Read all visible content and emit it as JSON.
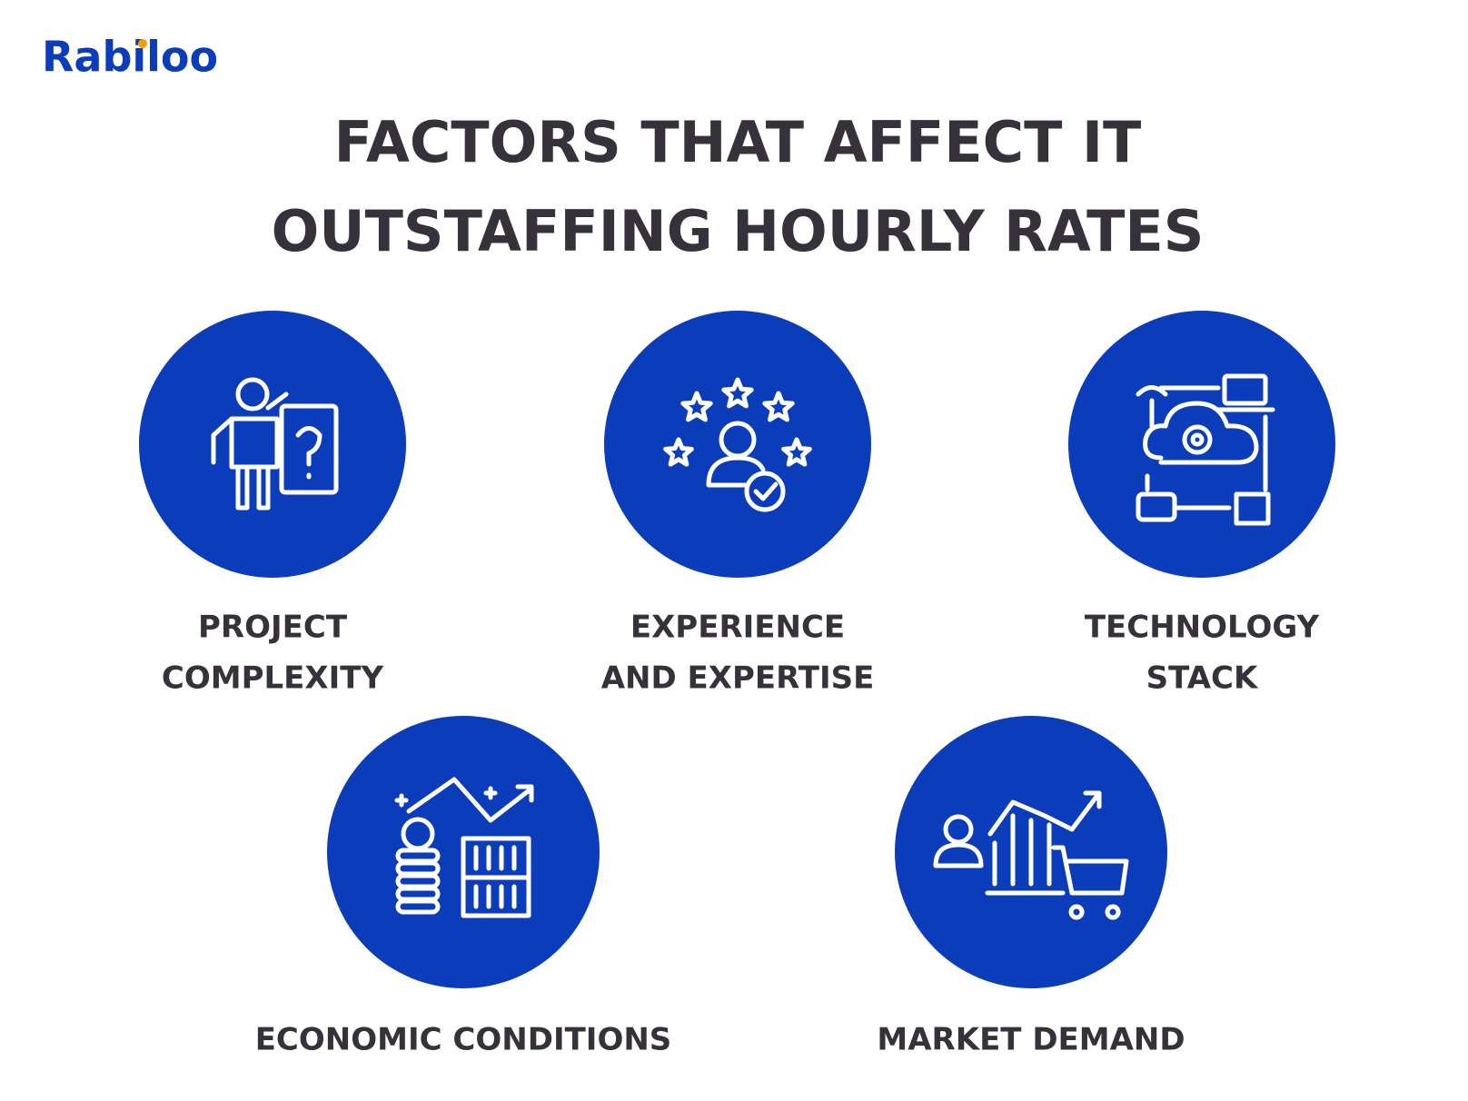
{
  "logo": "Rabiloo",
  "title_lines": [
    "FACTORS THAT AFFECT IT",
    "OUTSTAFFING HOURLY RATES"
  ],
  "factors": [
    {
      "label_lines": [
        "PROJECT",
        "COMPLEXITY"
      ]
    },
    {
      "label_lines": [
        "EXPERIENCE",
        "AND EXPERTISE"
      ]
    },
    {
      "label_lines": [
        "TECHNOLOGY",
        "STACK"
      ]
    },
    {
      "label_lines": [
        "ECONOMIC CONDITIONS"
      ]
    },
    {
      "label_lines": [
        "MARKET DEMAND"
      ]
    }
  ]
}
